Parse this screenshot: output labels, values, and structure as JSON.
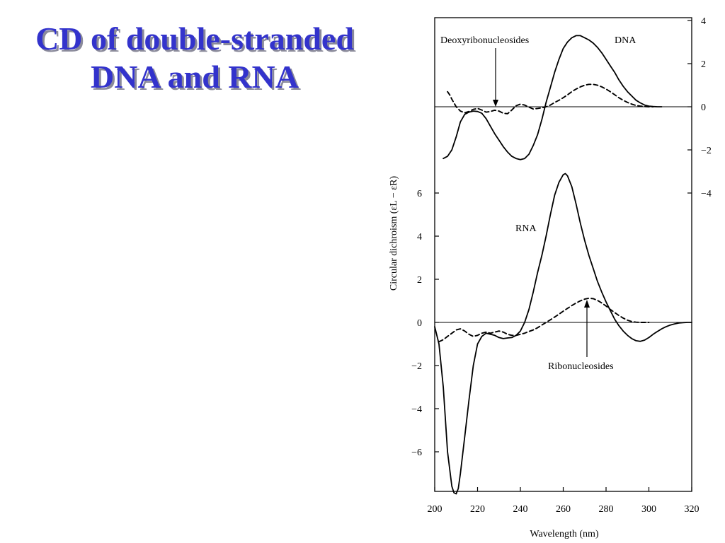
{
  "slide": {
    "title_line1": "CD of double-stranded",
    "title_line2": "DNA and RNA"
  },
  "chart_data": {
    "type": "line",
    "xlabel": "Wavelength (nm)",
    "ylabel": "Circular dichroism (εL − εR)",
    "x_ticks": [
      "200",
      "220",
      "240",
      "260",
      "280",
      "300",
      "320"
    ],
    "xlim": [
      200,
      320
    ],
    "grid": false,
    "legend": "none",
    "upper_panel": {
      "ylim": [
        -4.5,
        4
      ],
      "y_ticks": [
        "4",
        "2",
        "0",
        "−2",
        "−4"
      ],
      "axis_side": "right",
      "series": [
        {
          "name": "DNA",
          "style": "solid",
          "x": [
            204,
            206,
            208,
            210,
            212,
            214,
            216,
            218,
            220,
            222,
            224,
            226,
            228,
            230,
            232,
            234,
            236,
            238,
            240,
            242,
            244,
            246,
            248,
            250,
            252,
            254,
            256,
            258,
            260,
            262,
            264,
            266,
            268,
            270,
            272,
            274,
            276,
            278,
            280,
            282,
            284,
            286,
            288,
            290,
            292,
            294,
            296,
            298,
            300,
            302,
            304,
            306
          ],
          "y": [
            -2.4,
            -2.3,
            -2.0,
            -1.4,
            -0.7,
            -0.35,
            -0.25,
            -0.2,
            -0.22,
            -0.3,
            -0.55,
            -0.9,
            -1.25,
            -1.55,
            -1.85,
            -2.1,
            -2.3,
            -2.4,
            -2.45,
            -2.4,
            -2.2,
            -1.8,
            -1.3,
            -0.6,
            0.2,
            0.9,
            1.6,
            2.2,
            2.7,
            3.0,
            3.2,
            3.3,
            3.3,
            3.2,
            3.1,
            2.95,
            2.75,
            2.5,
            2.2,
            1.9,
            1.6,
            1.25,
            0.95,
            0.7,
            0.5,
            0.3,
            0.18,
            0.08,
            0.03,
            0.01,
            0.0,
            0.0
          ]
        },
        {
          "name": "",
          "style": "dashed",
          "x": [
            206,
            207,
            208,
            210,
            212,
            214,
            216,
            218,
            220,
            222,
            224,
            226,
            228,
            230,
            232,
            234,
            236,
            238,
            240,
            242,
            244,
            246,
            248,
            250,
            252,
            254,
            256,
            258,
            260,
            262,
            264,
            266,
            268,
            270,
            272,
            274,
            276,
            278,
            280,
            282,
            284,
            286,
            288,
            290,
            292,
            294,
            296,
            298,
            300,
            302
          ],
          "y": [
            0.7,
            0.55,
            0.35,
            0.0,
            -0.2,
            -0.28,
            -0.22,
            -0.12,
            -0.08,
            -0.15,
            -0.25,
            -0.22,
            -0.16,
            -0.2,
            -0.3,
            -0.32,
            -0.15,
            0.05,
            0.12,
            0.08,
            -0.02,
            -0.1,
            -0.08,
            -0.05,
            0.0,
            0.08,
            0.2,
            0.3,
            0.42,
            0.55,
            0.7,
            0.82,
            0.92,
            1.0,
            1.04,
            1.04,
            1.0,
            0.92,
            0.82,
            0.7,
            0.56,
            0.42,
            0.3,
            0.2,
            0.12,
            0.06,
            0.03,
            0.01,
            0.0,
            0.0
          ]
        }
      ],
      "annotations": [
        "DNA",
        "Deoxyribonucleosides"
      ]
    },
    "lower_panel": {
      "ylim": [
        -7.9,
        7.5
      ],
      "y_ticks": [
        "6",
        "4",
        "2",
        "0",
        "−2",
        "−4",
        "−6"
      ],
      "axis_side": "left",
      "series": [
        {
          "name": "RNA",
          "style": "solid",
          "x": [
            200,
            202,
            204,
            206,
            208,
            209,
            210,
            211,
            212,
            214,
            216,
            218,
            220,
            222,
            224,
            226,
            228,
            230,
            232,
            234,
            236,
            238,
            240,
            242,
            244,
            246,
            248,
            250,
            252,
            254,
            256,
            258,
            260,
            261,
            262,
            264,
            266,
            268,
            270,
            272,
            274,
            276,
            278,
            280,
            282,
            284,
            286,
            288,
            290,
            292,
            294,
            296,
            298,
            300,
            302,
            304,
            306,
            308,
            310,
            312,
            314,
            316,
            318,
            320
          ],
          "y": [
            -0.2,
            -1.0,
            -3.0,
            -6.0,
            -7.6,
            -7.9,
            -7.95,
            -7.7,
            -7.0,
            -5.3,
            -3.6,
            -2.0,
            -1.0,
            -0.65,
            -0.5,
            -0.55,
            -0.6,
            -0.7,
            -0.75,
            -0.72,
            -0.7,
            -0.6,
            -0.4,
            0.0,
            0.6,
            1.4,
            2.3,
            3.1,
            4.0,
            5.0,
            5.9,
            6.5,
            6.85,
            6.9,
            6.8,
            6.3,
            5.5,
            4.6,
            3.8,
            3.1,
            2.5,
            1.9,
            1.4,
            0.95,
            0.55,
            0.15,
            -0.15,
            -0.4,
            -0.6,
            -0.75,
            -0.85,
            -0.88,
            -0.82,
            -0.7,
            -0.55,
            -0.42,
            -0.3,
            -0.2,
            -0.12,
            -0.07,
            -0.03,
            -0.01,
            0.0,
            0.0
          ]
        },
        {
          "name": "",
          "style": "dashed",
          "x": [
            202,
            204,
            206,
            208,
            210,
            212,
            214,
            216,
            218,
            220,
            222,
            224,
            226,
            228,
            230,
            232,
            234,
            236,
            238,
            240,
            242,
            244,
            246,
            248,
            250,
            252,
            254,
            256,
            258,
            260,
            262,
            264,
            266,
            268,
            270,
            272,
            274,
            276,
            278,
            280,
            282,
            284,
            286,
            288,
            290,
            292,
            294,
            296,
            298,
            300
          ],
          "y": [
            -0.9,
            -0.8,
            -0.65,
            -0.5,
            -0.35,
            -0.3,
            -0.4,
            -0.55,
            -0.65,
            -0.6,
            -0.5,
            -0.45,
            -0.5,
            -0.45,
            -0.4,
            -0.45,
            -0.55,
            -0.6,
            -0.6,
            -0.55,
            -0.5,
            -0.42,
            -0.35,
            -0.25,
            -0.12,
            0.0,
            0.12,
            0.25,
            0.38,
            0.52,
            0.65,
            0.78,
            0.9,
            1.0,
            1.08,
            1.12,
            1.1,
            1.02,
            0.9,
            0.76,
            0.6,
            0.46,
            0.32,
            0.2,
            0.1,
            0.04,
            0.01,
            0.0,
            0.0,
            0.0
          ]
        }
      ],
      "annotations": [
        "RNA",
        "Ribonucleosides"
      ]
    }
  }
}
